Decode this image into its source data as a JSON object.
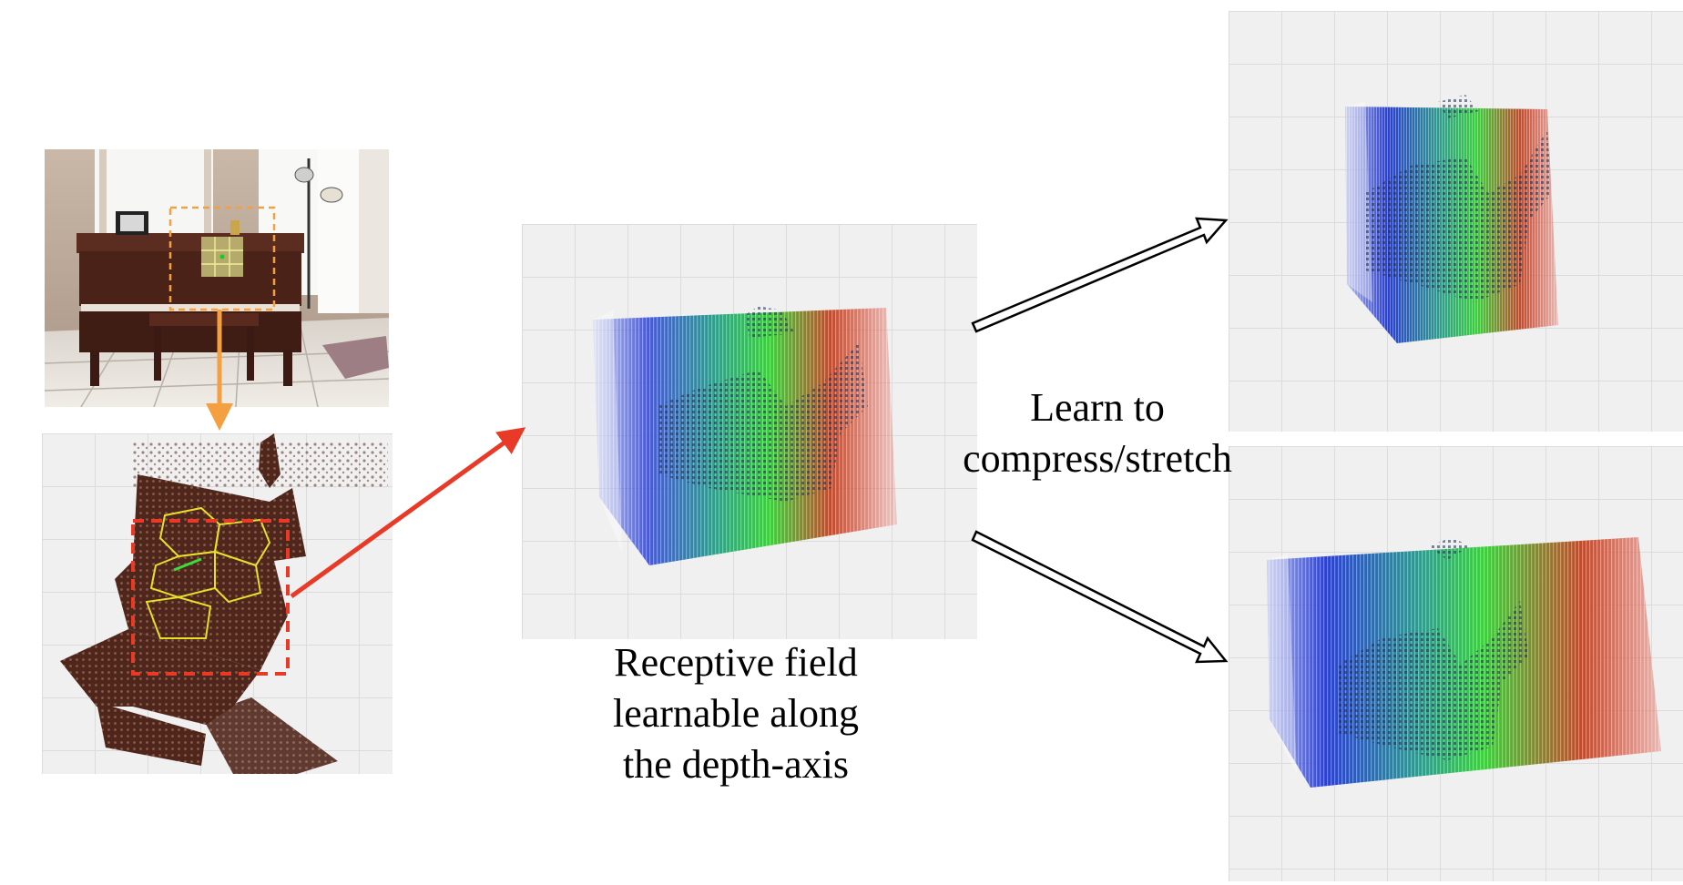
{
  "labels": {
    "receptive": [
      "Receptive field",
      "learnable along",
      "the depth-axis"
    ],
    "learn": [
      "Learn to",
      "compress/stretch"
    ]
  },
  "colors": {
    "orange_arrow": "#f5a040",
    "red_arrow": "#e83a26",
    "blue": "#2a3fcf",
    "green": "#3ccf3c",
    "red": "#d23a28",
    "piano_wood": "#4a2218",
    "pointcloud_brown": "#5a2c22"
  },
  "icons": {
    "room_photo": "piano-room-photo",
    "point_cloud": "piano-point-cloud",
    "volume": "depth-colored-volume"
  }
}
